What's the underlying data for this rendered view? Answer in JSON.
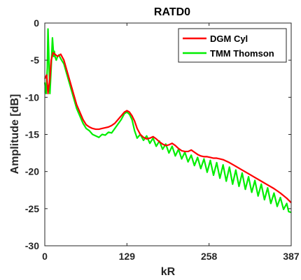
{
  "chart_data": {
    "type": "line",
    "title": "RATD0",
    "xlabel": "kR",
    "ylabel": "Amplitude [dB]",
    "xlim": [
      0,
      387
    ],
    "ylim": [
      -30,
      0
    ],
    "xticks": [
      0,
      129,
      258,
      387
    ],
    "xtick_labels": [
      "0",
      "129",
      "258",
      "387"
    ],
    "yticks": [
      0,
      -5,
      -10,
      -15,
      -20,
      -25,
      -30
    ],
    "ytick_labels": [
      "0",
      "-5",
      "-10",
      "-15",
      "-20",
      "-25",
      "-30"
    ],
    "grid": false,
    "legend_position": "top-right",
    "series": [
      {
        "name": "DGM Cyl",
        "color": "#ff0000",
        "x": [
          0,
          3,
          5,
          8,
          10,
          13,
          16,
          20,
          25,
          30,
          35,
          40,
          45,
          50,
          55,
          60,
          65,
          70,
          75,
          80,
          85,
          90,
          95,
          100,
          105,
          110,
          115,
          120,
          125,
          129,
          133,
          137,
          141,
          145,
          150,
          155,
          160,
          165,
          170,
          175,
          180,
          185,
          190,
          195,
          200,
          205,
          210,
          215,
          220,
          225,
          230,
          235,
          240,
          245,
          250,
          255,
          260,
          265,
          270,
          275,
          280,
          290,
          300,
          310,
          320,
          330,
          340,
          350,
          360,
          370,
          380,
          387
        ],
        "y": [
          -7.5,
          -7.0,
          -9.5,
          -7.5,
          -5.0,
          -4.0,
          -4.2,
          -4.5,
          -4.2,
          -5.0,
          -6.5,
          -8.0,
          -9.5,
          -11.0,
          -12.0,
          -13.0,
          -13.7,
          -14.0,
          -14.2,
          -14.3,
          -14.3,
          -14.2,
          -14.1,
          -14.0,
          -13.8,
          -13.5,
          -13.0,
          -12.5,
          -12.0,
          -11.8,
          -12.0,
          -12.5,
          -13.2,
          -14.2,
          -15.0,
          -15.4,
          -15.6,
          -15.5,
          -15.3,
          -15.6,
          -16.0,
          -16.3,
          -16.5,
          -16.4,
          -16.2,
          -16.5,
          -16.9,
          -17.2,
          -17.3,
          -17.3,
          -17.1,
          -17.4,
          -17.7,
          -17.9,
          -18.0,
          -18.0,
          -18.1,
          -18.2,
          -18.2,
          -18.3,
          -18.4,
          -18.8,
          -19.3,
          -19.8,
          -20.3,
          -20.8,
          -21.3,
          -21.8,
          -22.3,
          -22.9,
          -23.6,
          -24.2
        ]
      },
      {
        "name": "TMM Thomson",
        "color": "#00ee00",
        "x": [
          0,
          2,
          4,
          5,
          6,
          8,
          10,
          12,
          14,
          15,
          16,
          18,
          20,
          22,
          25,
          30,
          35,
          40,
          45,
          50,
          55,
          60,
          65,
          70,
          75,
          80,
          85,
          90,
          95,
          100,
          105,
          110,
          115,
          120,
          125,
          129,
          133,
          137,
          141,
          145,
          150,
          155,
          160,
          165,
          170,
          175,
          180,
          185,
          190,
          195,
          200,
          205,
          210,
          215,
          220,
          225,
          230,
          235,
          240,
          245,
          250,
          255,
          260,
          265,
          270,
          275,
          280,
          285,
          290,
          295,
          300,
          305,
          310,
          315,
          320,
          325,
          330,
          335,
          340,
          345,
          350,
          355,
          360,
          365,
          370,
          375,
          380,
          383,
          387
        ],
        "y": [
          -8.0,
          -9.5,
          -6.0,
          -0.8,
          -3.5,
          -9.5,
          -6.0,
          -2.0,
          -4.5,
          -3.8,
          -4.5,
          -5.0,
          -4.5,
          -4.3,
          -4.8,
          -5.5,
          -7.0,
          -8.5,
          -10.0,
          -11.5,
          -12.5,
          -13.5,
          -14.2,
          -14.5,
          -15.0,
          -15.2,
          -15.4,
          -15.0,
          -15.1,
          -14.7,
          -14.8,
          -14.2,
          -13.6,
          -13.0,
          -12.2,
          -12.0,
          -12.3,
          -13.0,
          -14.5,
          -15.5,
          -15.0,
          -15.8,
          -15.2,
          -16.2,
          -15.5,
          -16.6,
          -15.9,
          -17.0,
          -16.3,
          -17.5,
          -16.6,
          -17.9,
          -17.0,
          -18.3,
          -17.4,
          -18.7,
          -17.8,
          -19.2,
          -18.1,
          -19.6,
          -18.3,
          -20.1,
          -18.5,
          -20.5,
          -18.8,
          -20.9,
          -19.1,
          -21.3,
          -19.4,
          -21.7,
          -19.8,
          -22.0,
          -20.2,
          -22.4,
          -20.7,
          -22.8,
          -21.2,
          -23.3,
          -21.7,
          -23.8,
          -22.2,
          -24.3,
          -22.9,
          -24.7,
          -23.5,
          -25.1,
          -24.3,
          -25.4,
          -25.5
        ]
      }
    ]
  }
}
